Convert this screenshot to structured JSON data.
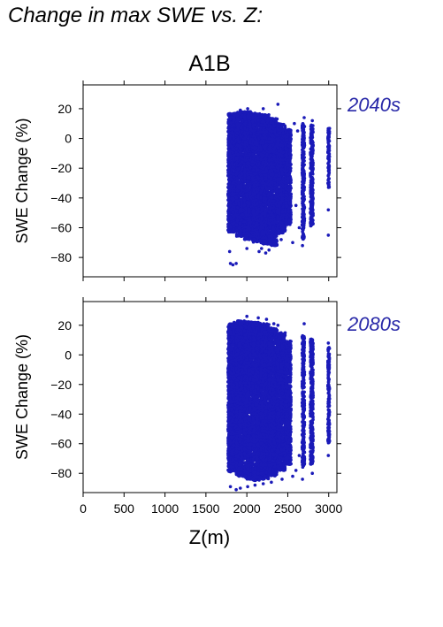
{
  "title": "Change in max SWE vs. Z:",
  "scenario": "A1B",
  "colors": {
    "points": "#1a1ab8",
    "panel_label": "#2828a8"
  },
  "chart_data": [
    {
      "type": "scatter",
      "panel_label": "2040s",
      "xlabel": "",
      "ylabel": "SWE Change (%)",
      "xlim": [
        0,
        3100
      ],
      "ylim": [
        -93,
        36
      ],
      "xticks": [
        0,
        500,
        1000,
        1500,
        2000,
        2500,
        3000
      ],
      "xtick_labels": [
        "",
        "",
        "",
        "",
        "",
        "",
        ""
      ],
      "yticks": [
        20,
        0,
        -20,
        -40,
        -60,
        -80
      ],
      "ytick_labels": [
        "20",
        "0",
        "−20",
        "−40",
        "−60",
        "−80"
      ],
      "density_bands": [
        {
          "x0": 1770,
          "x1": 1870,
          "ymin": -63,
          "ymax": 17
        },
        {
          "x0": 1870,
          "x1": 1970,
          "ymin": -66,
          "ymax": 18
        },
        {
          "x0": 1970,
          "x1": 2070,
          "ymin": -68,
          "ymax": 18
        },
        {
          "x0": 2070,
          "x1": 2170,
          "ymin": -70,
          "ymax": 17
        },
        {
          "x0": 2170,
          "x1": 2270,
          "ymin": -71,
          "ymax": 16
        },
        {
          "x0": 2270,
          "x1": 2370,
          "ymin": -72,
          "ymax": 14
        },
        {
          "x0": 2370,
          "x1": 2470,
          "ymin": -64,
          "ymax": 10
        },
        {
          "x0": 2470,
          "x1": 2540,
          "ymin": -58,
          "ymax": 6
        },
        {
          "x0": 2675,
          "x1": 2705,
          "ymin": -68,
          "ymax": 10
        },
        {
          "x0": 2775,
          "x1": 2810,
          "ymin": -60,
          "ymax": 9
        },
        {
          "x0": 2990,
          "x1": 3010,
          "ymin": -33,
          "ymax": 7
        }
      ],
      "outliers": [
        [
          1800,
          -84
        ],
        [
          1830,
          -85
        ],
        [
          1870,
          -84
        ],
        [
          1790,
          -76
        ],
        [
          2000,
          -74
        ],
        [
          2150,
          -76
        ],
        [
          2180,
          -74
        ],
        [
          2230,
          -77
        ],
        [
          2270,
          -75
        ],
        [
          2420,
          -68
        ],
        [
          2380,
          23
        ],
        [
          2200,
          20
        ],
        [
          2010,
          20
        ],
        [
          1920,
          19
        ],
        [
          2580,
          10
        ],
        [
          2620,
          5
        ],
        [
          2560,
          -70
        ],
        [
          2640,
          -60
        ],
        [
          2600,
          -45
        ],
        [
          2680,
          -72
        ],
        [
          2700,
          14
        ],
        [
          2800,
          12
        ],
        [
          2995,
          -65
        ],
        [
          2995,
          -30
        ],
        [
          2995,
          -48
        ]
      ]
    },
    {
      "type": "scatter",
      "panel_label": "2080s",
      "xlabel": "Z(m)",
      "ylabel": "SWE Change (%)",
      "xlim": [
        0,
        3100
      ],
      "ylim": [
        -93,
        36
      ],
      "xticks": [
        0,
        500,
        1000,
        1500,
        2000,
        2500,
        3000
      ],
      "xtick_labels": [
        "0",
        "500",
        "1000",
        "1500",
        "2000",
        "2500",
        "3000"
      ],
      "yticks": [
        20,
        0,
        -20,
        -40,
        -60,
        -80
      ],
      "ytick_labels": [
        "20",
        "0",
        "−20",
        "−40",
        "−60",
        "−80"
      ],
      "density_bands": [
        {
          "x0": 1770,
          "x1": 1870,
          "ymin": -79,
          "ymax": 22
        },
        {
          "x0": 1870,
          "x1": 1970,
          "ymin": -82,
          "ymax": 23
        },
        {
          "x0": 1970,
          "x1": 2070,
          "ymin": -84,
          "ymax": 23
        },
        {
          "x0": 2070,
          "x1": 2170,
          "ymin": -85,
          "ymax": 22
        },
        {
          "x0": 2170,
          "x1": 2270,
          "ymin": -84,
          "ymax": 21
        },
        {
          "x0": 2270,
          "x1": 2370,
          "ymin": -82,
          "ymax": 18
        },
        {
          "x0": 2370,
          "x1": 2470,
          "ymin": -78,
          "ymax": 15
        },
        {
          "x0": 2470,
          "x1": 2540,
          "ymin": -74,
          "ymax": 10
        },
        {
          "x0": 2675,
          "x1": 2705,
          "ymin": -76,
          "ymax": 13
        },
        {
          "x0": 2775,
          "x1": 2810,
          "ymin": -74,
          "ymax": 11
        },
        {
          "x0": 2990,
          "x1": 3010,
          "ymin": -60,
          "ymax": 5
        }
      ],
      "outliers": [
        [
          1800,
          -89
        ],
        [
          1870,
          -91
        ],
        [
          1920,
          -90
        ],
        [
          2010,
          -89
        ],
        [
          2100,
          -88
        ],
        [
          2200,
          -87
        ],
        [
          2300,
          -86
        ],
        [
          2430,
          -84
        ],
        [
          2000,
          26
        ],
        [
          2140,
          25
        ],
        [
          2240,
          24
        ],
        [
          2330,
          21
        ],
        [
          2380,
          20
        ],
        [
          2700,
          21
        ],
        [
          2600,
          -78
        ],
        [
          2560,
          -82
        ],
        [
          2640,
          -68
        ],
        [
          2680,
          -84
        ],
        [
          2800,
          -80
        ],
        [
          2995,
          -68
        ],
        [
          2995,
          8
        ],
        [
          2995,
          -40
        ]
      ]
    }
  ]
}
